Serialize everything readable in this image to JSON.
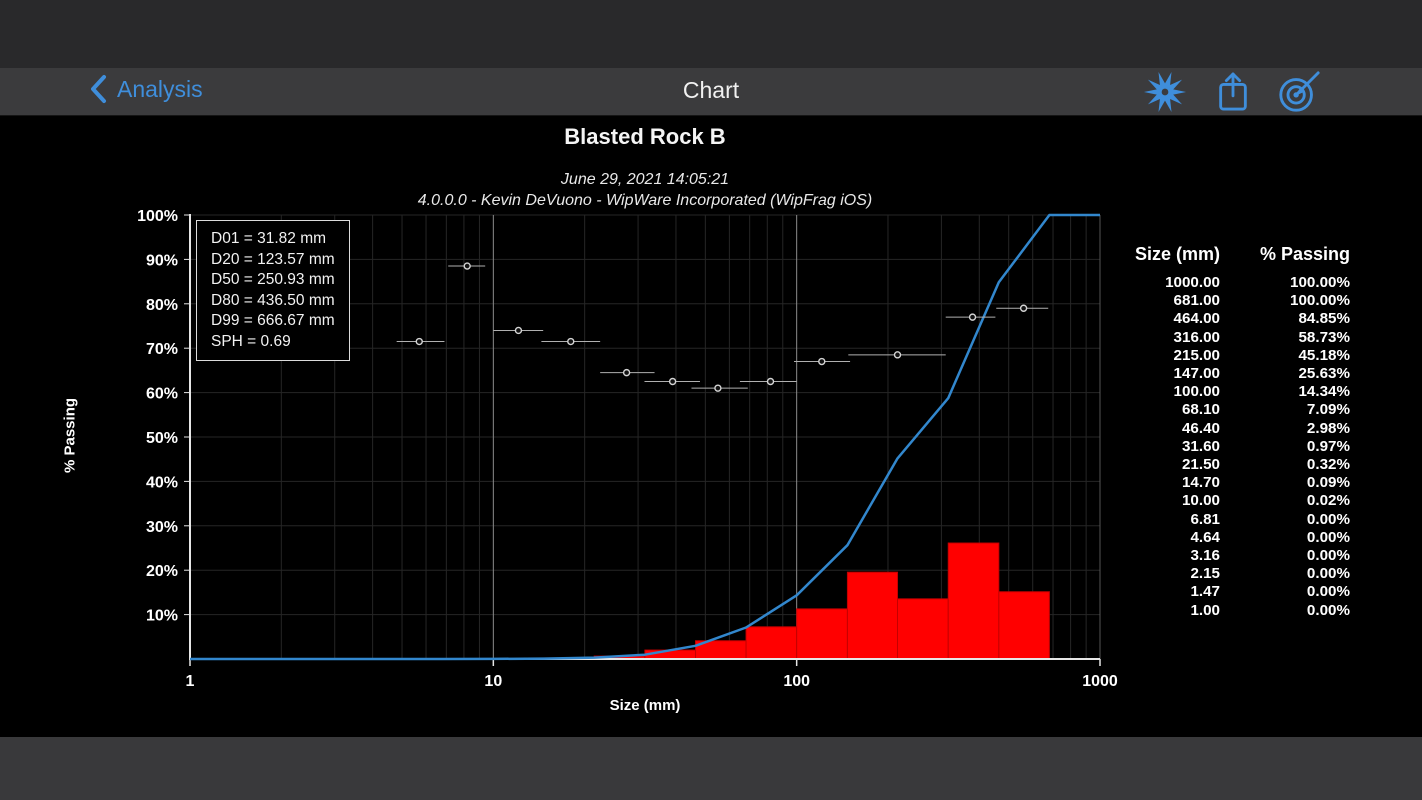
{
  "colors": {
    "accent": "#3f8edb",
    "curve": "#3287cd",
    "bar": "#ff0000",
    "bar_edge": "#c40000",
    "background": "#000000"
  },
  "nav": {
    "back_label": "Analysis",
    "title": "Chart",
    "icons": [
      "blast-icon",
      "share-icon",
      "target-icon"
    ]
  },
  "chart_data": {
    "type": "line",
    "title": "Blasted Rock B",
    "subtitle1": "June 29, 2021 14:05:21",
    "subtitle2": "4.0.0.0  -  Kevin DeVuono - WipWare Incorporated (WipFrag iOS)",
    "xlabel": "Size (mm)",
    "ylabel": "% Passing",
    "x_scale": "log",
    "xlim": [
      1,
      1000
    ],
    "ylim": [
      0,
      100
    ],
    "grid": {
      "minor_color": "#262626",
      "major_color": "#8c8c8c",
      "axis_color": "#e6e6e6",
      "edge_color": "#555555"
    },
    "x_ticks": [
      {
        "value": 1,
        "label": "1"
      },
      {
        "value": 10,
        "label": "10"
      },
      {
        "value": 100,
        "label": "100"
      },
      {
        "value": 1000,
        "label": "1000"
      }
    ],
    "y_ticks": [
      {
        "value": 10,
        "label": "10%"
      },
      {
        "value": 20,
        "label": "20%"
      },
      {
        "value": 30,
        "label": "30%"
      },
      {
        "value": 40,
        "label": "40%"
      },
      {
        "value": 50,
        "label": "50%"
      },
      {
        "value": 60,
        "label": "60%"
      },
      {
        "value": 70,
        "label": "70%"
      },
      {
        "value": 80,
        "label": "80%"
      },
      {
        "value": 90,
        "label": "90%"
      },
      {
        "value": 100,
        "label": "100%"
      }
    ],
    "annotations": [
      "D01 = 31.82 mm",
      "D20 = 123.57 mm",
      "D50 = 250.93 mm",
      "D80 = 436.50 mm",
      "D99 = 666.67 mm",
      "SPH = 0.69"
    ],
    "cumulative_curve": {
      "points": [
        [
          1,
          0
        ],
        [
          1.47,
          0
        ],
        [
          2.15,
          0
        ],
        [
          3.16,
          0
        ],
        [
          4.64,
          0
        ],
        [
          6.81,
          0
        ],
        [
          10,
          0.02
        ],
        [
          14.7,
          0.09
        ],
        [
          21.5,
          0.32
        ],
        [
          31.6,
          0.97
        ],
        [
          46.4,
          2.98
        ],
        [
          68.1,
          7.09
        ],
        [
          100,
          14.34
        ],
        [
          147,
          25.63
        ],
        [
          215,
          45.18
        ],
        [
          316,
          58.73
        ],
        [
          464,
          84.85
        ],
        [
          681,
          100
        ],
        [
          1000,
          100
        ]
      ]
    },
    "histogram_bins": [
      {
        "from": 10,
        "to": 14.7,
        "value": 0.07
      },
      {
        "from": 14.7,
        "to": 21.5,
        "value": 0.23
      },
      {
        "from": 21.5,
        "to": 31.6,
        "value": 0.65
      },
      {
        "from": 31.6,
        "to": 46.4,
        "value": 2.01
      },
      {
        "from": 46.4,
        "to": 68.1,
        "value": 4.11
      },
      {
        "from": 68.1,
        "to": 100,
        "value": 7.25
      },
      {
        "from": 100,
        "to": 147,
        "value": 11.29
      },
      {
        "from": 147,
        "to": 215,
        "value": 19.55
      },
      {
        "from": 215,
        "to": 316,
        "value": 13.55
      },
      {
        "from": 316,
        "to": 464,
        "value": 26.12
      },
      {
        "from": 464,
        "to": 681,
        "value": 15.15
      }
    ],
    "markers": {
      "line_color": "#b0b0b0",
      "points": [
        {
          "x": 5.7,
          "xlow": 4.8,
          "xhigh": 6.9,
          "y": 71.5
        },
        {
          "x": 8.2,
          "xlow": 7.1,
          "xhigh": 9.4,
          "y": 88.5
        },
        {
          "x": 12.1,
          "xlow": 10.0,
          "xhigh": 14.6,
          "y": 74.0
        },
        {
          "x": 18.0,
          "xlow": 14.4,
          "xhigh": 22.5,
          "y": 71.5
        },
        {
          "x": 27.5,
          "xlow": 22.5,
          "xhigh": 34.0,
          "y": 64.5
        },
        {
          "x": 39.0,
          "xlow": 31.5,
          "xhigh": 48.0,
          "y": 62.5
        },
        {
          "x": 55.0,
          "xlow": 45.0,
          "xhigh": 69.0,
          "y": 61.0
        },
        {
          "x": 82.0,
          "xlow": 65.0,
          "xhigh": 100.0,
          "y": 62.5
        },
        {
          "x": 121.0,
          "xlow": 98.0,
          "xhigh": 150.0,
          "y": 67.0
        },
        {
          "x": 215.0,
          "xlow": 148.0,
          "xhigh": 310.0,
          "y": 68.5
        },
        {
          "x": 380.0,
          "xlow": 310.0,
          "xhigh": 452.0,
          "y": 77.0
        },
        {
          "x": 560.0,
          "xlow": 455.0,
          "xhigh": 675.0,
          "y": 79.0
        }
      ]
    }
  },
  "table": {
    "headers": [
      "Size (mm)",
      "% Passing"
    ],
    "rows": [
      [
        "1000.00",
        "100.00%"
      ],
      [
        "681.00",
        "100.00%"
      ],
      [
        "464.00",
        "84.85%"
      ],
      [
        "316.00",
        "58.73%"
      ],
      [
        "215.00",
        "45.18%"
      ],
      [
        "147.00",
        "25.63%"
      ],
      [
        "100.00",
        "14.34%"
      ],
      [
        "68.10",
        "7.09%"
      ],
      [
        "46.40",
        "2.98%"
      ],
      [
        "31.60",
        "0.97%"
      ],
      [
        "21.50",
        "0.32%"
      ],
      [
        "14.70",
        "0.09%"
      ],
      [
        "10.00",
        "0.02%"
      ],
      [
        "6.81",
        "0.00%"
      ],
      [
        "4.64",
        "0.00%"
      ],
      [
        "3.16",
        "0.00%"
      ],
      [
        "2.15",
        "0.00%"
      ],
      [
        "1.47",
        "0.00%"
      ],
      [
        "1.00",
        "0.00%"
      ]
    ]
  }
}
